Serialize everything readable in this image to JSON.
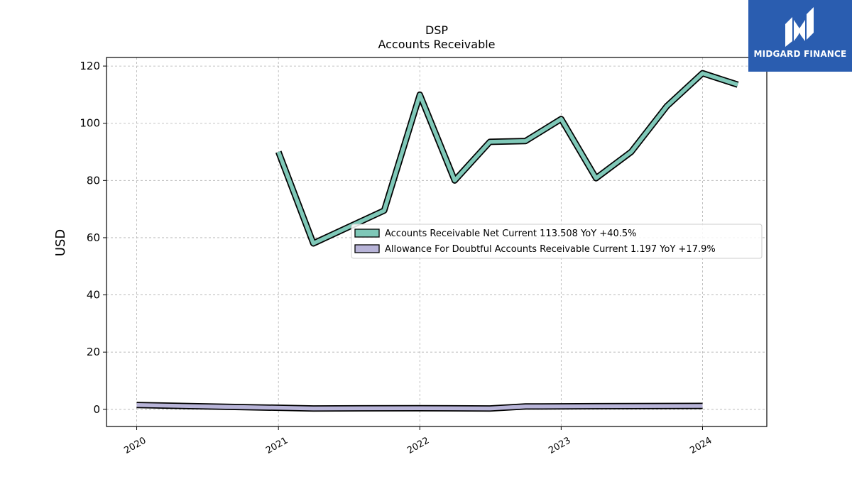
{
  "chart_data": {
    "type": "line",
    "title": "DSP",
    "subtitle": "Accounts Receivable",
    "ylabel": "USD",
    "xlabel": "",
    "ylim": [
      -6,
      123
    ],
    "yticks": [
      0,
      20,
      40,
      60,
      80,
      100,
      120
    ],
    "xlim": [
      "2019-10-15",
      "2024-06-15"
    ],
    "xticks": [
      "2020",
      "2021",
      "2022",
      "2023",
      "2024"
    ],
    "grid": true,
    "legend_position": "center-right",
    "series": [
      {
        "name": "Accounts Receivable Net Current",
        "legend_label": "Accounts Receivable Net Current  113.508 YoY +40.5%",
        "color": "#7fc8b8",
        "points": [
          {
            "x": "2021-01-01",
            "y": 90
          },
          {
            "x": "2021-04-01",
            "y": 58
          },
          {
            "x": "2021-10-01",
            "y": 69.5
          },
          {
            "x": "2022-01-01",
            "y": 110
          },
          {
            "x": "2022-04-01",
            "y": 80
          },
          {
            "x": "2022-07-01",
            "y": 93.5
          },
          {
            "x": "2022-10-01",
            "y": 93.8
          },
          {
            "x": "2023-01-01",
            "y": 101.5
          },
          {
            "x": "2023-04-01",
            "y": 80.8
          },
          {
            "x": "2023-07-01",
            "y": 90
          },
          {
            "x": "2023-10-01",
            "y": 106
          },
          {
            "x": "2024-01-01",
            "y": 117.5
          },
          {
            "x": "2024-04-01",
            "y": 113.5
          }
        ]
      },
      {
        "name": "Allowance For Doubtful Accounts Receivable Current",
        "legend_label": "Allowance For Doubtful Accounts Receivable Current  1.197 YoY +17.9%",
        "color": "#b8b4d8",
        "points": [
          {
            "x": "2020-01-01",
            "y": 1.5
          },
          {
            "x": "2021-04-01",
            "y": 0.3
          },
          {
            "x": "2022-01-01",
            "y": 0.4
          },
          {
            "x": "2022-07-01",
            "y": 0.3
          },
          {
            "x": "2022-10-01",
            "y": 1.0
          },
          {
            "x": "2023-04-01",
            "y": 1.1
          },
          {
            "x": "2024-01-01",
            "y": 1.2
          }
        ]
      }
    ]
  },
  "logo": {
    "text": "MIDGARD FINANCE",
    "bg_color": "#2a5db0"
  }
}
